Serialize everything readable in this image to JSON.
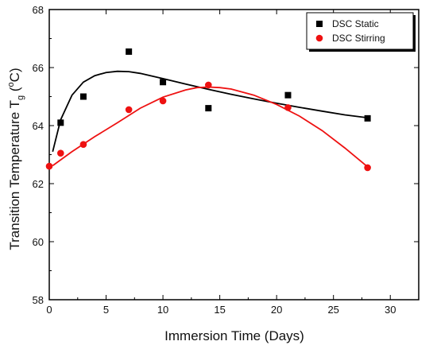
{
  "chart_data": {
    "type": "scatter",
    "xlabel": "Immersion Time (Days)",
    "ylabel": {
      "main": "Transition Temperature T",
      "sub": "g",
      "unit": " (",
      "deg": "o",
      "unit_end": "C)"
    },
    "xlim": [
      0,
      32.5
    ],
    "ylim": [
      58,
      68
    ],
    "xticks": [
      0,
      5,
      10,
      15,
      20,
      25,
      30
    ],
    "yticks": [
      58,
      60,
      62,
      64,
      66,
      68
    ],
    "grid": false,
    "legend_position": "top-right",
    "series": [
      {
        "name": "DSC Static",
        "marker": "square",
        "color": "#000000",
        "points": [
          [
            1,
            64.1
          ],
          [
            3,
            65.0
          ],
          [
            7,
            66.55
          ],
          [
            10,
            65.5
          ],
          [
            14,
            64.6
          ],
          [
            21,
            65.05
          ],
          [
            28,
            64.25
          ]
        ],
        "fit": [
          [
            0.3,
            63.1
          ],
          [
            1,
            64.2
          ],
          [
            2,
            65.05
          ],
          [
            3,
            65.5
          ],
          [
            4,
            65.72
          ],
          [
            5,
            65.83
          ],
          [
            6,
            65.87
          ],
          [
            7,
            65.86
          ],
          [
            8,
            65.8
          ],
          [
            10,
            65.62
          ],
          [
            12,
            65.43
          ],
          [
            14,
            65.25
          ],
          [
            16,
            65.08
          ],
          [
            18,
            64.92
          ],
          [
            20,
            64.77
          ],
          [
            22,
            64.63
          ],
          [
            24,
            64.5
          ],
          [
            26,
            64.37
          ],
          [
            28,
            64.27
          ]
        ]
      },
      {
        "name": "DSC Stirring",
        "marker": "circle",
        "color": "#ee1111",
        "points": [
          [
            0,
            62.6
          ],
          [
            1,
            63.05
          ],
          [
            3,
            63.35
          ],
          [
            7,
            64.55
          ],
          [
            10,
            64.85
          ],
          [
            14,
            65.4
          ],
          [
            21,
            64.62
          ],
          [
            28,
            62.55
          ]
        ],
        "fit": [
          [
            0.3,
            62.62
          ],
          [
            2,
            63.1
          ],
          [
            4,
            63.62
          ],
          [
            6,
            64.1
          ],
          [
            8,
            64.6
          ],
          [
            10,
            64.98
          ],
          [
            12,
            65.23
          ],
          [
            13,
            65.31
          ],
          [
            14,
            65.33
          ],
          [
            15,
            65.31
          ],
          [
            16,
            65.26
          ],
          [
            18,
            65.05
          ],
          [
            20,
            64.73
          ],
          [
            22,
            64.33
          ],
          [
            24,
            63.83
          ],
          [
            26,
            63.23
          ],
          [
            28,
            62.58
          ]
        ]
      }
    ]
  }
}
